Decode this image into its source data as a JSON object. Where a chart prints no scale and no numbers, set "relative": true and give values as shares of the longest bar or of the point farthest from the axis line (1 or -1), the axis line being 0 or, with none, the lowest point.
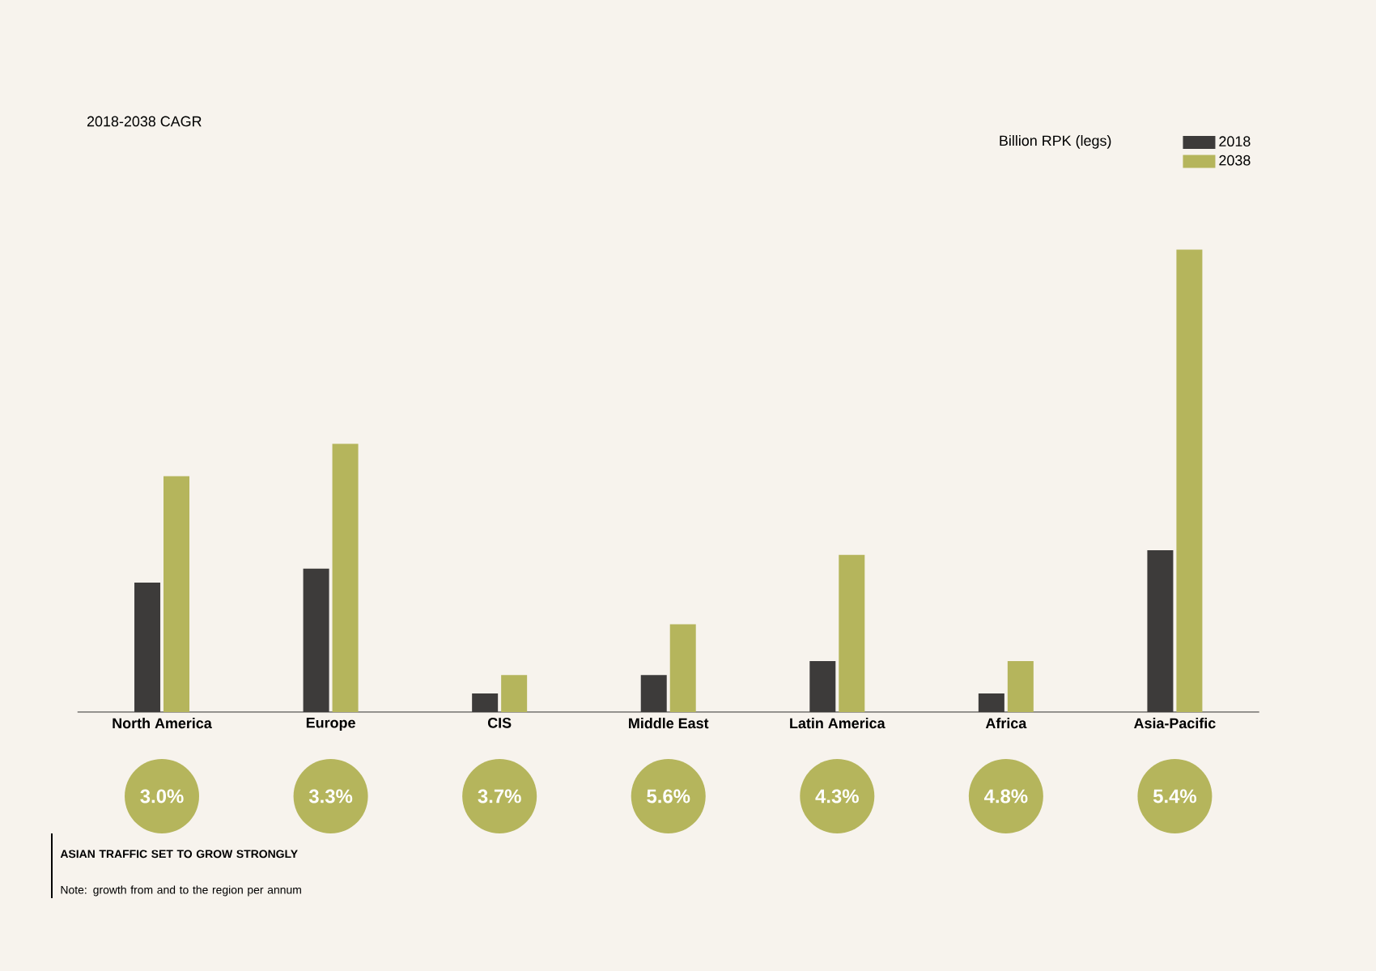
{
  "chart_data": {
    "type": "bar",
    "title": "2018-2038 CAGR",
    "relative": true,
    "legend": "top right",
    "categories": [
      "North America",
      "Europe",
      "CIS",
      "Middle East",
      "Latin America",
      "Africa",
      "Asia-Pacific"
    ],
    "series": [
      {
        "name": "2018",
        "color": "#3d3b3a",
        "values": [
          0.28,
          0.31,
          0.04,
          0.08,
          0.11,
          0.04,
          0.35
        ]
      },
      {
        "name": "2038",
        "color": "#b5b55c",
        "values": [
          0.51,
          0.58,
          0.08,
          0.19,
          0.34,
          0.11,
          1.0
        ]
      }
    ],
    "annotations": [
      "3.0%",
      "3.3%",
      "3.7%",
      "5.6%",
      "4.3%",
      "4.8%",
      "5.4%",
      "**ASIAN TRAFFIC SET TO GROW STRONGLY**",
      "Note: growth from and to the region per annum",
      "Billion RPK (legs)"
    ]
  }
}
